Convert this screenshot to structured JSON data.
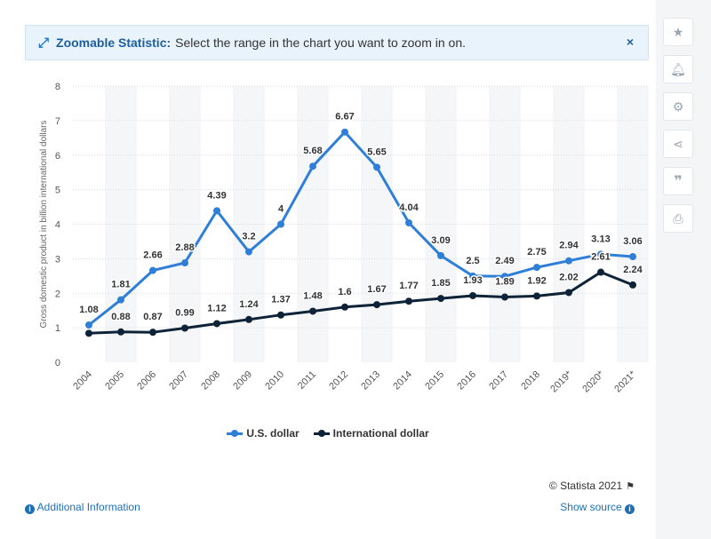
{
  "banner": {
    "label": "Zoomable Statistic:",
    "text": "Select the range in the chart you want to zoom in on.",
    "close": "×"
  },
  "footer": {
    "credit": "© Statista 2021",
    "additional_info": "Additional Information",
    "show_source": "Show source"
  },
  "sidebar": {
    "icons": [
      "star-icon",
      "bell-icon",
      "gear-icon",
      "share-icon",
      "quote-icon",
      "print-icon"
    ]
  },
  "colors": {
    "usd": "#2f7ed8",
    "intl": "#0e2337",
    "accent": "#1f6fb8"
  },
  "chart_data": {
    "type": "line",
    "title": "",
    "xlabel": "",
    "ylabel": "Gross domestic product in billion international dollars",
    "ylim": [
      0,
      8
    ],
    "yticks": [
      0,
      1,
      2,
      3,
      4,
      5,
      6,
      7,
      8
    ],
    "categories": [
      "2004",
      "2005",
      "2006",
      "2007",
      "2008",
      "2009",
      "2010",
      "2011",
      "2012",
      "2013",
      "2014",
      "2015",
      "2016",
      "2017",
      "2018",
      "2019*",
      "2020*",
      "2021*"
    ],
    "grid": true,
    "legend_position": "bottom",
    "series": [
      {
        "name": "U.S. dollar",
        "values": [
          1.08,
          1.81,
          2.66,
          2.88,
          4.39,
          3.2,
          4,
          5.68,
          6.67,
          5.65,
          4.04,
          3.09,
          2.5,
          2.49,
          2.75,
          2.94,
          3.13,
          3.06
        ],
        "labels": [
          "1.08",
          "1.81",
          "2.66",
          "2.88",
          "4.39",
          "3.2",
          "4",
          "5.68",
          "6.67",
          "5.65",
          "4.04",
          "3.09",
          "2.5",
          "2.49",
          "2.75",
          "2.94",
          "3.13",
          "3.06"
        ]
      },
      {
        "name": "International dollar",
        "values": [
          0.84,
          0.88,
          0.87,
          0.99,
          1.12,
          1.24,
          1.37,
          1.48,
          1.6,
          1.67,
          1.77,
          1.85,
          1.93,
          1.89,
          1.92,
          2.02,
          2.61,
          2.24
        ],
        "labels": [
          "",
          "0.88",
          "0.87",
          "0.99",
          "1.12",
          "1.24",
          "1.37",
          "1.48",
          "1.6",
          "1.67",
          "1.77",
          "1.85",
          "1.93",
          "1.89",
          "1.92",
          "2.02",
          "2.61",
          "2.24"
        ]
      }
    ]
  }
}
